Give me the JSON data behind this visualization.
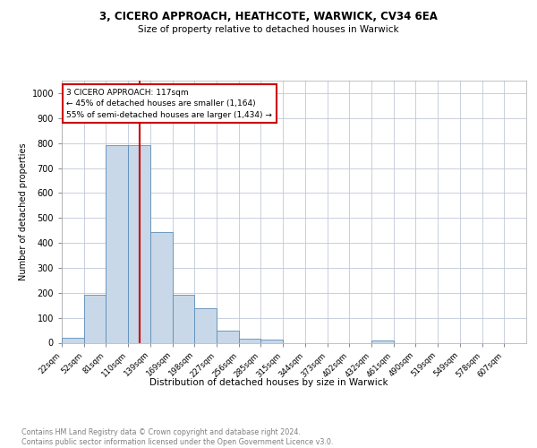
{
  "title1": "3, CICERO APPROACH, HEATHCOTE, WARWICK, CV34 6EA",
  "title2": "Size of property relative to detached houses in Warwick",
  "xlabel": "Distribution of detached houses by size in Warwick",
  "ylabel": "Number of detached properties",
  "bin_labels": [
    "22sqm",
    "52sqm",
    "81sqm",
    "110sqm",
    "139sqm",
    "169sqm",
    "198sqm",
    "227sqm",
    "256sqm",
    "285sqm",
    "315sqm",
    "344sqm",
    "373sqm",
    "402sqm",
    "432sqm",
    "461sqm",
    "490sqm",
    "519sqm",
    "549sqm",
    "578sqm",
    "607sqm"
  ],
  "bar_heights": [
    20,
    193,
    790,
    790,
    443,
    193,
    140,
    47,
    17,
    12,
    0,
    0,
    0,
    0,
    10,
    0,
    0,
    0,
    0,
    0,
    0
  ],
  "bar_color": "#c8d8e8",
  "bar_edge_color": "#5b8db8",
  "vline_color": "#cc0000",
  "vline_index": 3,
  "annotation_text": "3 CICERO APPROACH: 117sqm\n← 45% of detached houses are smaller (1,164)\n55% of semi-detached houses are larger (1,434) →",
  "annotation_box_color": "#cc0000",
  "ylim": [
    0,
    1050
  ],
  "yticks": [
    0,
    100,
    200,
    300,
    400,
    500,
    600,
    700,
    800,
    900,
    1000
  ],
  "footer_text": "Contains HM Land Registry data © Crown copyright and database right 2024.\nContains public sector information licensed under the Open Government Licence v3.0.",
  "bg_color": "#ffffff",
  "grid_color": "#c0c8d8"
}
